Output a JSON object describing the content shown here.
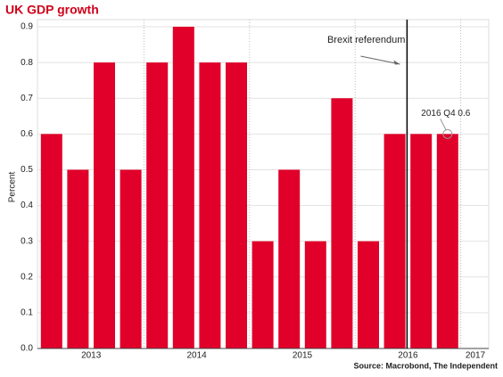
{
  "chart_data": {
    "type": "bar",
    "title": "UK GDP growth",
    "y_label": "Percent",
    "source": "Source: Macrobond, The Independent",
    "categories": [
      null,
      null,
      null,
      null,
      null,
      null,
      null,
      null,
      null,
      null,
      null,
      null,
      null,
      null,
      null,
      null
    ],
    "year_labels": [
      "2013",
      "2014",
      "2015",
      "2016",
      "2017"
    ],
    "values": [
      0.6,
      0.5,
      0.8,
      0.5,
      0.8,
      0.9,
      0.8,
      0.8,
      0.3,
      0.5,
      0.3,
      0.7,
      0.3,
      0.6,
      0.6,
      0.6
    ],
    "color": "#e0002a",
    "ylim": [
      0,
      0.92
    ],
    "yticks": [
      {
        "value": 0,
        "label": "0.0"
      },
      0.1,
      0.2,
      0.3,
      0.4,
      0.5,
      0.6,
      0.7,
      0.8,
      0.9
    ],
    "grid": true,
    "annotations": [
      {
        "text": "Brexit referendum"
      },
      {
        "text": "2016 Q4 0.6"
      }
    ]
  }
}
